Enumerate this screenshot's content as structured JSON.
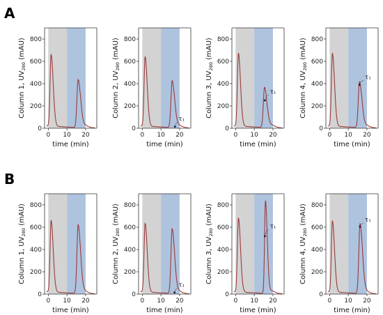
{
  "panels": [
    {
      "letter": "A"
    },
    {
      "letter": "B"
    }
  ],
  "colors": {
    "trace": "#9a3a3a",
    "load_band": "#d3d3d3",
    "wash_band": "#aec3de",
    "axis": "#333333"
  },
  "chart_data": [
    {
      "type": "line",
      "panel": "A",
      "ylabel_prefix": "Column 1, UV",
      "ylabel_sub": "280",
      "ylabel_suffix": " (mAU)",
      "xlabel": "time (min)",
      "xlim": [
        -2,
        26
      ],
      "ylim": [
        0,
        900
      ],
      "xticks": [
        0,
        10,
        20
      ],
      "yticks": [
        0,
        200,
        400,
        600,
        800
      ],
      "bands": [
        {
          "x": [
            0,
            10
          ],
          "color": "load"
        },
        {
          "x": [
            10,
            20
          ],
          "color": "wash"
        }
      ],
      "peaks": [
        {
          "x": 1.5,
          "y": 640,
          "w": 0.7
        },
        {
          "x": 16.0,
          "y": 430,
          "w": 0.8
        }
      ],
      "baseline": 20,
      "annotation": ""
    },
    {
      "type": "line",
      "panel": "A",
      "ylabel_prefix": "Column 2, UV",
      "ylabel_sub": "280",
      "ylabel_suffix": " (mAU)",
      "xlabel": "time (min)",
      "xlim": [
        -2,
        26
      ],
      "ylim": [
        0,
        900
      ],
      "xticks": [
        0,
        10,
        20
      ],
      "yticks": [
        0,
        200,
        400,
        600,
        800
      ],
      "bands": [
        {
          "x": [
            0,
            10
          ],
          "color": "load"
        },
        {
          "x": [
            10,
            20
          ],
          "color": "wash"
        }
      ],
      "peaks": [
        {
          "x": 1.5,
          "y": 620,
          "w": 0.7
        },
        {
          "x": 16.0,
          "y": 420,
          "w": 0.8
        }
      ],
      "baseline": 20,
      "annotation": "τ₁",
      "ann_point": [
        17.5,
        15
      ],
      "ann_text_at": [
        19.5,
        65
      ]
    },
    {
      "type": "line",
      "panel": "A",
      "ylabel_prefix": "Column 3, UV",
      "ylabel_sub": "280",
      "ylabel_suffix": " (mAU)",
      "xlabel": "time (min)",
      "xlim": [
        -2,
        26
      ],
      "ylim": [
        0,
        900
      ],
      "xticks": [
        0,
        10,
        20
      ],
      "yticks": [
        0,
        200,
        400,
        600,
        800
      ],
      "bands": [
        {
          "x": [
            0,
            10
          ],
          "color": "load"
        },
        {
          "x": [
            10,
            20
          ],
          "color": "wash"
        }
      ],
      "peaks": [
        {
          "x": 1.5,
          "y": 650,
          "w": 0.7
        },
        {
          "x": 15.5,
          "y": 360,
          "w": 0.8
        }
      ],
      "baseline": 20,
      "annotation": "τ₁",
      "ann_point": [
        15.7,
        250
      ],
      "ann_text_at": [
        18.5,
        310
      ]
    },
    {
      "type": "line",
      "panel": "A",
      "ylabel_prefix": "Column 4, UV",
      "ylabel_sub": "280",
      "ylabel_suffix": " (mAU)",
      "xlabel": "time (min)",
      "xlim": [
        -2,
        26
      ],
      "ylim": [
        0,
        900
      ],
      "xticks": [
        0,
        10,
        20
      ],
      "yticks": [
        0,
        200,
        400,
        600,
        800
      ],
      "bands": [
        {
          "x": [
            0,
            10
          ],
          "color": "load"
        },
        {
          "x": [
            10,
            20
          ],
          "color": "wash"
        }
      ],
      "peaks": [
        {
          "x": 1.5,
          "y": 650,
          "w": 0.7
        },
        {
          "x": 16.0,
          "y": 410,
          "w": 0.8
        }
      ],
      "baseline": 20,
      "annotation": "τ₁",
      "ann_point": [
        16.0,
        390
      ],
      "ann_text_at": [
        19.0,
        440
      ]
    },
    {
      "type": "line",
      "panel": "B",
      "ylabel_prefix": "Column 1, UV",
      "ylabel_sub": "280",
      "ylabel_suffix": " (mAU)",
      "xlabel": "time (min)",
      "xlim": [
        -2,
        26
      ],
      "ylim": [
        0,
        900
      ],
      "xticks": [
        0,
        10,
        20
      ],
      "yticks": [
        0,
        200,
        400,
        600,
        800
      ],
      "bands": [
        {
          "x": [
            0,
            10
          ],
          "color": "load"
        },
        {
          "x": [
            10,
            20
          ],
          "color": "wash"
        }
      ],
      "peaks": [
        {
          "x": 1.5,
          "y": 640,
          "w": 0.7
        },
        {
          "x": 16.0,
          "y": 615,
          "w": 0.8
        }
      ],
      "baseline": 20,
      "annotation": ""
    },
    {
      "type": "line",
      "panel": "B",
      "ylabel_prefix": "Column 2, UV",
      "ylabel_sub": "280",
      "ylabel_suffix": " (mAU)",
      "xlabel": "time (min)",
      "xlim": [
        -2,
        26
      ],
      "ylim": [
        0,
        900
      ],
      "xticks": [
        0,
        10,
        20
      ],
      "yticks": [
        0,
        200,
        400,
        600,
        800
      ],
      "bands": [
        {
          "x": [
            0,
            10
          ],
          "color": "load"
        },
        {
          "x": [
            10,
            20
          ],
          "color": "wash"
        }
      ],
      "peaks": [
        {
          "x": 1.5,
          "y": 615,
          "w": 0.7
        },
        {
          "x": 16.0,
          "y": 580,
          "w": 0.8
        }
      ],
      "baseline": 20,
      "annotation": "τ₁",
      "ann_point": [
        17.3,
        15
      ],
      "ann_text_at": [
        19.5,
        65
      ]
    },
    {
      "type": "line",
      "panel": "B",
      "ylabel_prefix": "Column 3, UV",
      "ylabel_sub": "280",
      "ylabel_suffix": " (mAU)",
      "xlabel": "time (min)",
      "xlim": [
        -2,
        26
      ],
      "ylim": [
        0,
        900
      ],
      "xticks": [
        0,
        10,
        20
      ],
      "yticks": [
        0,
        200,
        400,
        600,
        800
      ],
      "bands": [
        {
          "x": [
            0,
            10
          ],
          "color": "load"
        },
        {
          "x": [
            10,
            20
          ],
          "color": "wash"
        }
      ],
      "peaks": [
        {
          "x": 1.5,
          "y": 660,
          "w": 0.7
        },
        {
          "x": 16.0,
          "y": 830,
          "w": 0.6
        }
      ],
      "baseline": 20,
      "annotation": "τ₁",
      "ann_point": [
        15.7,
        520
      ],
      "ann_text_at": [
        18.5,
        590
      ]
    },
    {
      "type": "line",
      "panel": "B",
      "ylabel_prefix": "Column 4, UV",
      "ylabel_sub": "280",
      "ylabel_suffix": " (mAU)",
      "xlabel": "time (min)",
      "xlim": [
        -2,
        26
      ],
      "ylim": [
        0,
        900
      ],
      "xticks": [
        0,
        10,
        20
      ],
      "yticks": [
        0,
        200,
        400,
        600,
        800
      ],
      "bands": [
        {
          "x": [
            0,
            10
          ],
          "color": "load"
        },
        {
          "x": [
            10,
            20
          ],
          "color": "wash"
        }
      ],
      "peaks": [
        {
          "x": 1.5,
          "y": 635,
          "w": 0.7
        },
        {
          "x": 16.3,
          "y": 625,
          "w": 0.8
        }
      ],
      "baseline": 20,
      "annotation": "τ₁",
      "ann_point": [
        16.3,
        605
      ],
      "ann_text_at": [
        19.0,
        650
      ]
    }
  ]
}
